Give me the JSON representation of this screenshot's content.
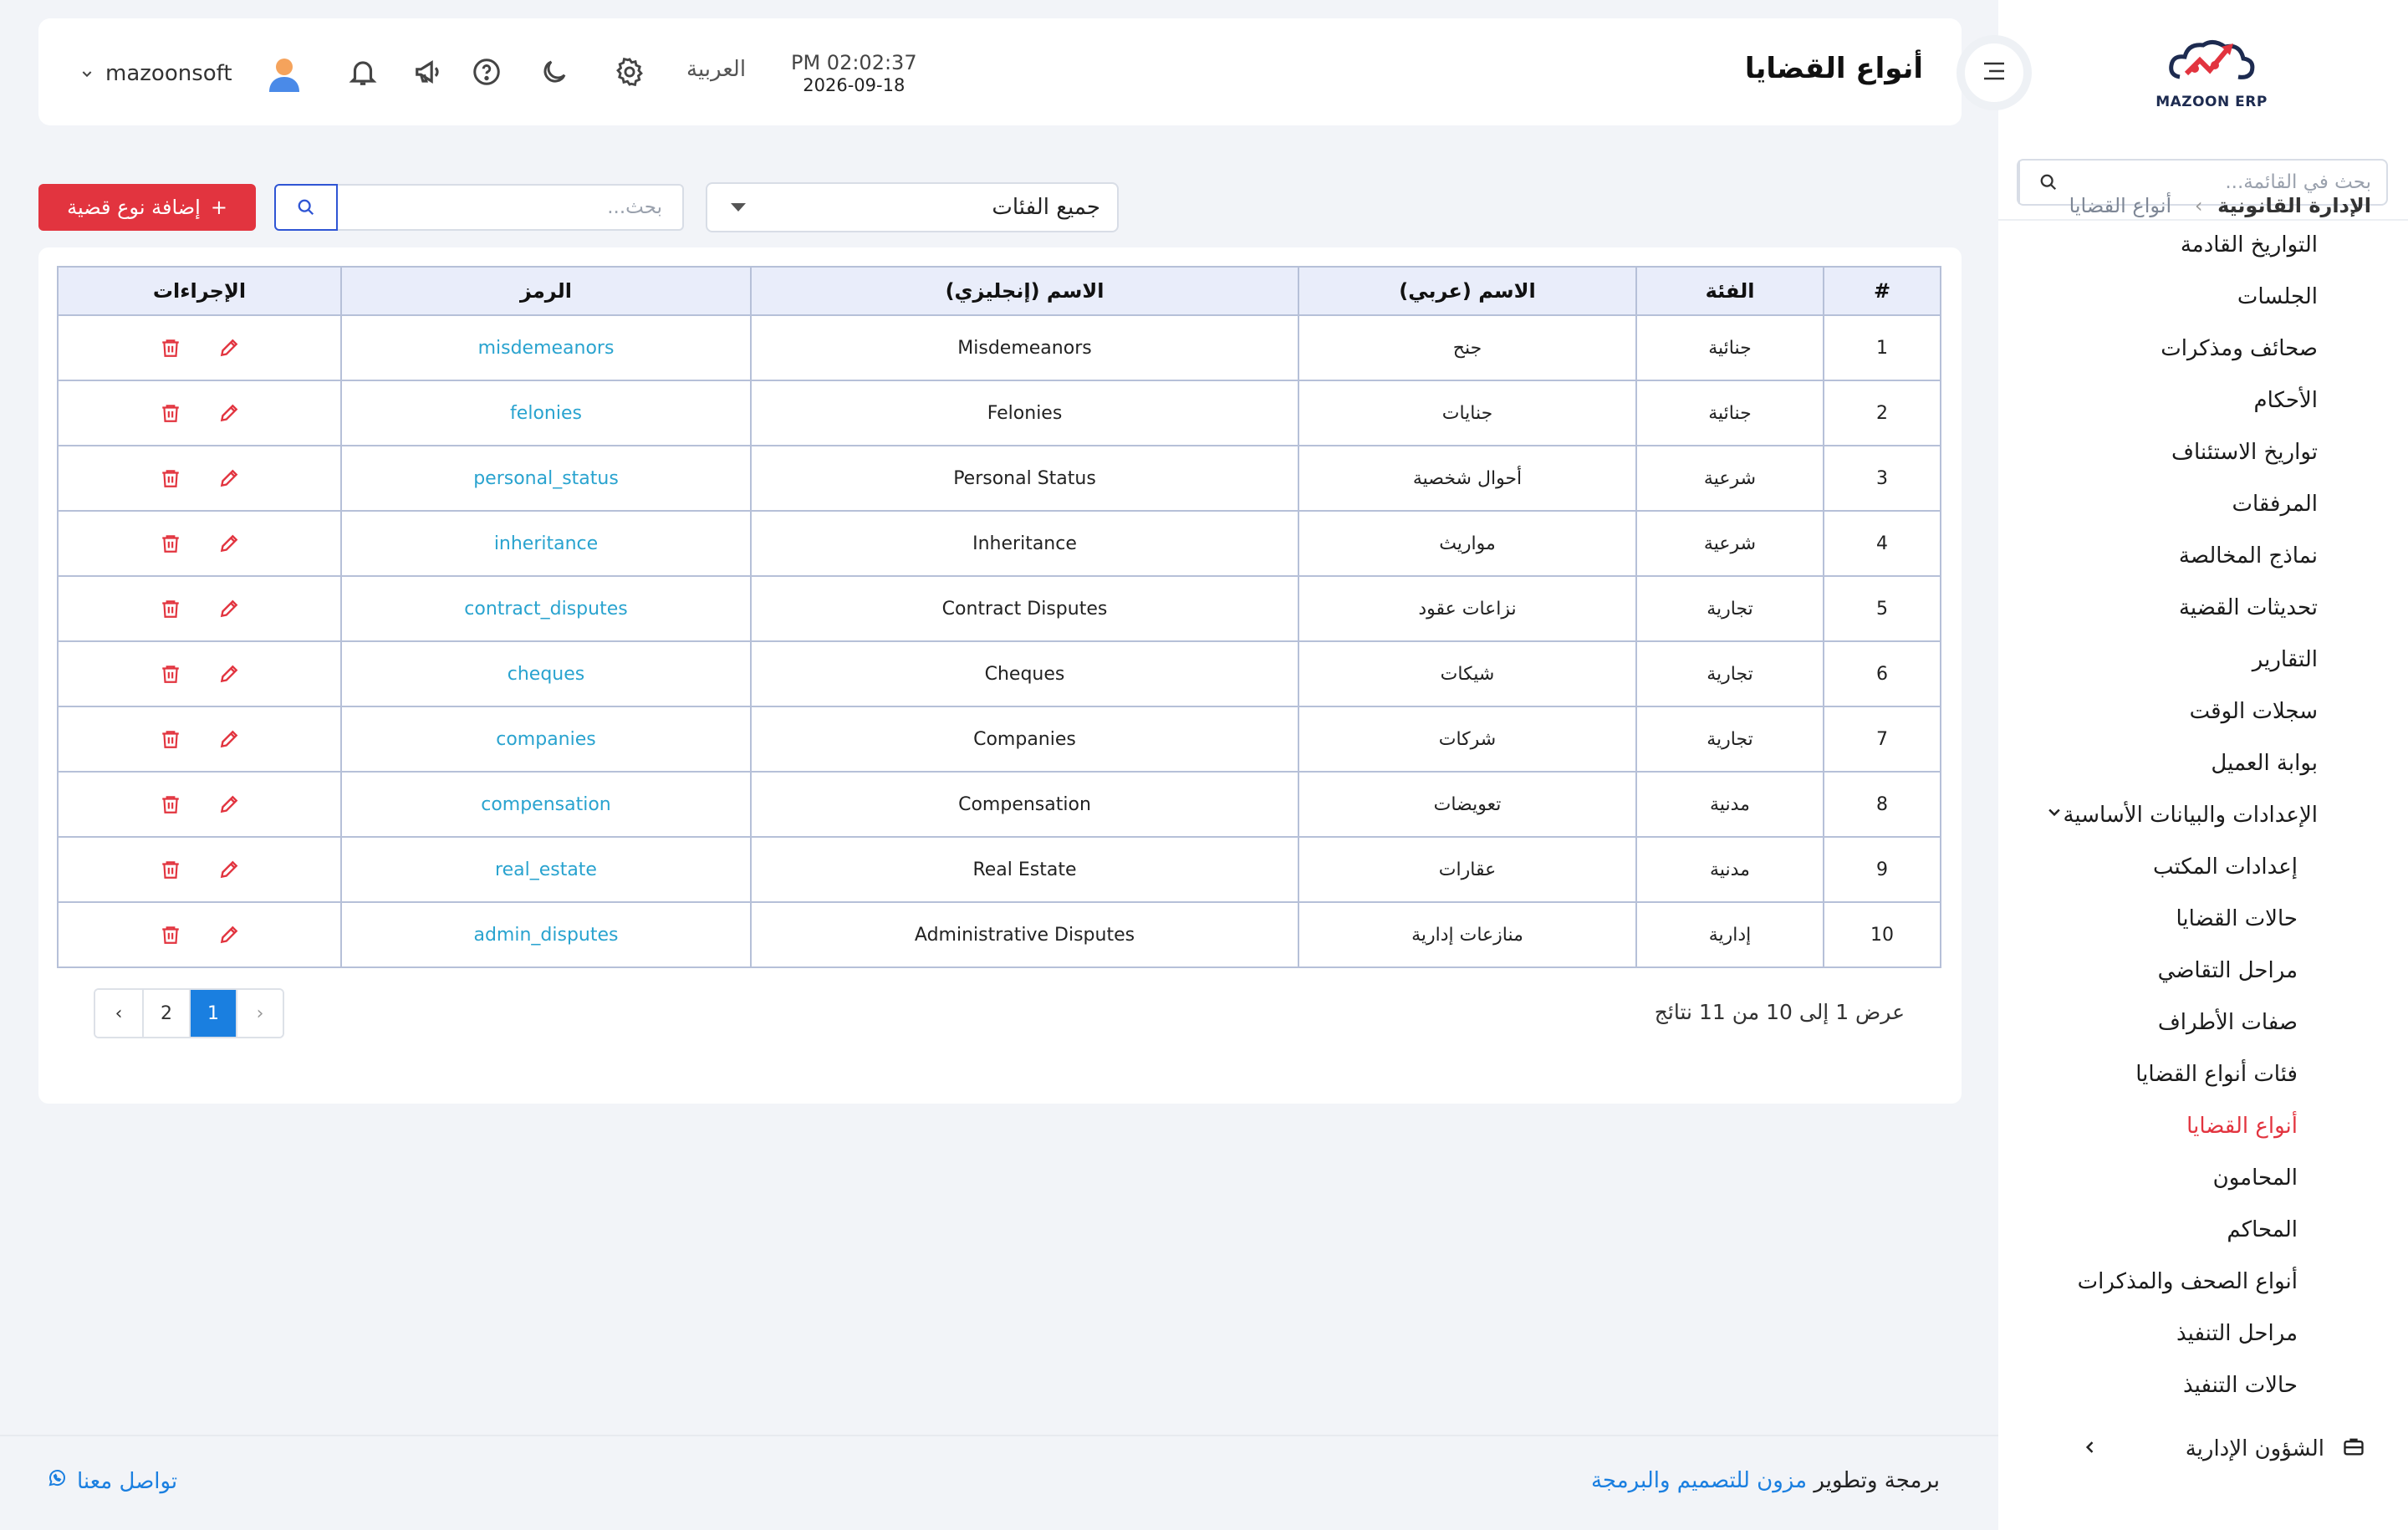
{
  "sidebar": {
    "logo_text": "MAZOON ERP",
    "search_placeholder": "بحث في القائمة...",
    "items": [
      {
        "label": "التواريخ القادمة"
      },
      {
        "label": "الجلسات"
      },
      {
        "label": "صحائف ومذكرات"
      },
      {
        "label": "الأحكام"
      },
      {
        "label": "تواريخ الاستئناف"
      },
      {
        "label": "المرفقات"
      },
      {
        "label": "نماذج المخالصة"
      },
      {
        "label": "تحديثات القضية"
      },
      {
        "label": "التقارير"
      },
      {
        "label": "سجلات الوقت"
      },
      {
        "label": "بوابة العميل"
      }
    ],
    "group": {
      "label": "الإعدادات والبيانات الأساسية"
    },
    "sub_items": [
      {
        "label": "إعدادات المكتب"
      },
      {
        "label": "حالات القضايا"
      },
      {
        "label": "مراحل التقاضي"
      },
      {
        "label": "صفات الأطراف"
      },
      {
        "label": "فئات أنواع القضايا"
      },
      {
        "label": "أنواع القضايا"
      },
      {
        "label": "المحامون"
      },
      {
        "label": "المحاكم"
      },
      {
        "label": "أنواع الصحف والمذكرات"
      },
      {
        "label": "مراحل التنفيذ"
      },
      {
        "label": "حالات التنفيذ"
      }
    ],
    "bottom": {
      "label": "الشؤون الإدارية"
    }
  },
  "header": {
    "title": "أنواع القضايا",
    "time": "PM 02:02:37",
    "date": "2026-09-18",
    "language": "العربية",
    "username": "mazoonsoft"
  },
  "toolbar": {
    "breadcrumb_parent": "الإدارة القانونية",
    "breadcrumb_current": "أنواع القضايا",
    "category_select": "جميع الفئات",
    "search_placeholder": "بحث...",
    "add_button": "إضافة نوع قضية"
  },
  "table": {
    "headers": {
      "num": "#",
      "category": "الفئة",
      "name_ar": "الاسم (عربي)",
      "name_en": "الاسم (إنجليزي)",
      "code": "الرمز",
      "actions": "الإجراءات"
    },
    "rows": [
      {
        "num": "1",
        "category": "جنائية",
        "name_ar": "جنح",
        "name_en": "Misdemeanors",
        "code": "misdemeanors"
      },
      {
        "num": "2",
        "category": "جنائية",
        "name_ar": "جنايات",
        "name_en": "Felonies",
        "code": "felonies"
      },
      {
        "num": "3",
        "category": "شرعية",
        "name_ar": "أحوال شخصية",
        "name_en": "Personal Status",
        "code": "personal_status"
      },
      {
        "num": "4",
        "category": "شرعية",
        "name_ar": "مواريث",
        "name_en": "Inheritance",
        "code": "inheritance"
      },
      {
        "num": "5",
        "category": "تجارية",
        "name_ar": "نزاعات عقود",
        "name_en": "Contract Disputes",
        "code": "contract_disputes"
      },
      {
        "num": "6",
        "category": "تجارية",
        "name_ar": "شيكات",
        "name_en": "Cheques",
        "code": "cheques"
      },
      {
        "num": "7",
        "category": "تجارية",
        "name_ar": "شركات",
        "name_en": "Companies",
        "code": "companies"
      },
      {
        "num": "8",
        "category": "مدنية",
        "name_ar": "تعويضات",
        "name_en": "Compensation",
        "code": "compensation"
      },
      {
        "num": "9",
        "category": "مدنية",
        "name_ar": "عقارات",
        "name_en": "Real Estate",
        "code": "real_estate"
      },
      {
        "num": "10",
        "category": "إدارية",
        "name_ar": "منازعات إدارية",
        "name_en": "Administrative Disputes",
        "code": "admin_disputes"
      }
    ],
    "summary": "عرض 1 إلى 10 من 11 نتائج",
    "pages": [
      "1",
      "2"
    ],
    "current_page": "1"
  },
  "footer": {
    "credits_prefix": "برمجة وتطوير",
    "credits_link": "مزون للتصميم والبرمجة",
    "contact": "تواصل معنا"
  },
  "colors": {
    "accent_red": "#e2343f",
    "link_blue": "#1a7fe0",
    "code_cyan": "#29a3cf"
  }
}
